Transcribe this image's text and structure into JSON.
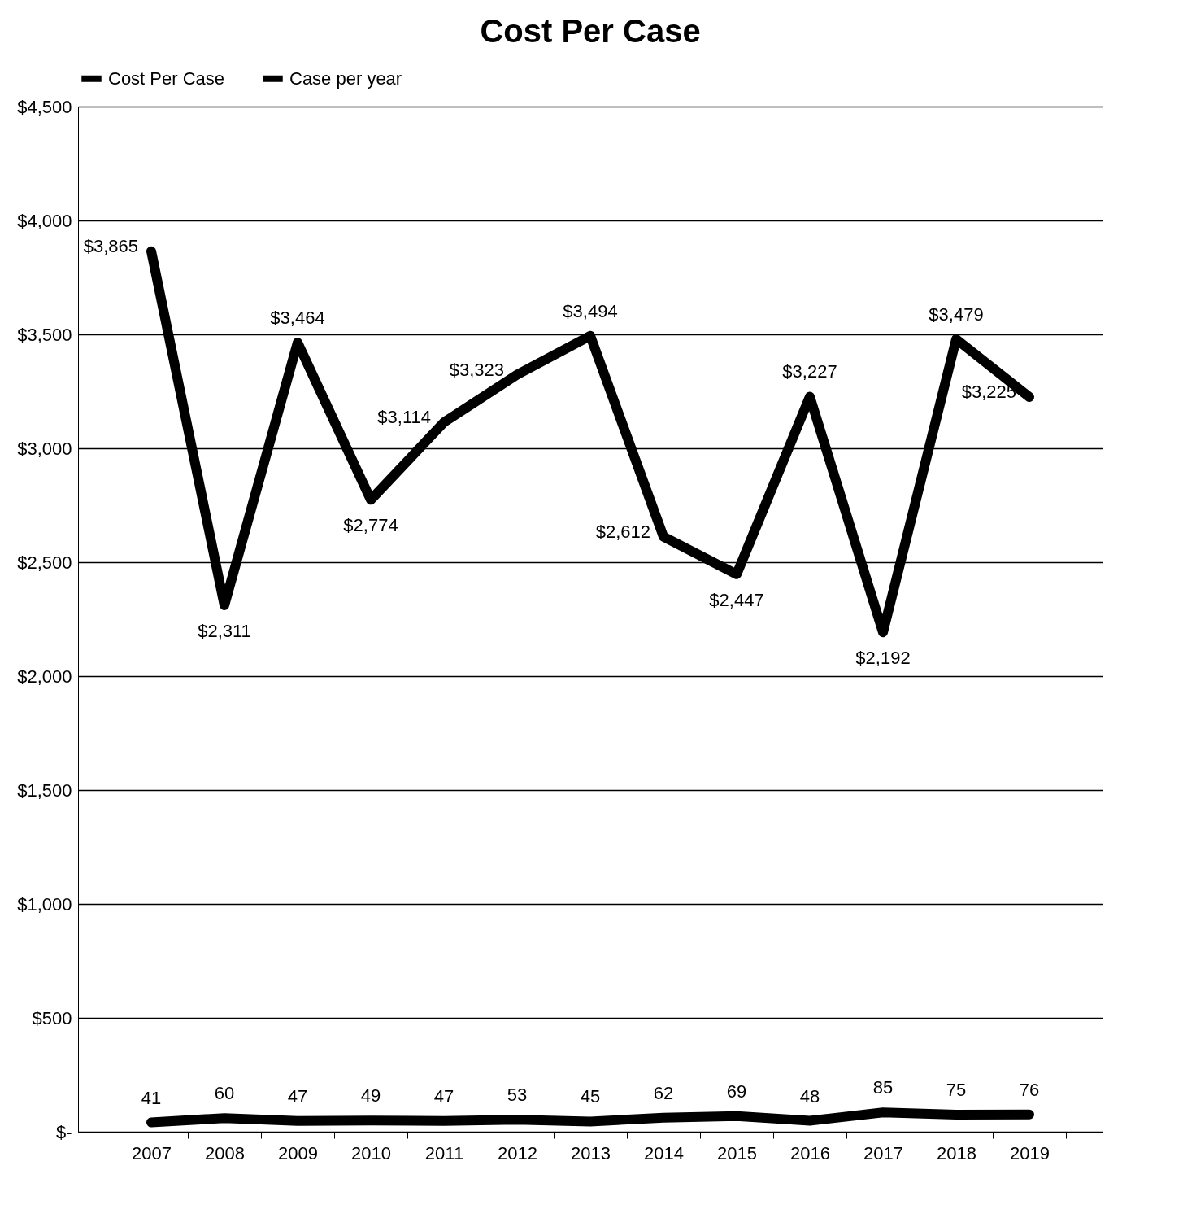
{
  "chart_data": {
    "type": "line",
    "title": "Cost Per Case",
    "categories": [
      "2007",
      "2008",
      "2009",
      "2010",
      "2011",
      "2012",
      "2013",
      "2014",
      "2015",
      "2016",
      "2017",
      "2018",
      "2019"
    ],
    "series": [
      {
        "name": "Cost Per Case",
        "color": "#000000",
        "values": [
          3865,
          2311,
          3464,
          2774,
          3114,
          3323,
          3494,
          2612,
          2447,
          3227,
          2192,
          3479,
          3225
        ],
        "value_labels": [
          "$3,865",
          "$2,311",
          "$3,464",
          "$2,774",
          "$3,114",
          "$3,323",
          "$3,494",
          "$2,612",
          "$2,447",
          "$3,227",
          "$2,192",
          "$3,479",
          "$3,225"
        ]
      },
      {
        "name": "Case per year",
        "color": "#000000",
        "values": [
          41,
          60,
          47,
          49,
          47,
          53,
          45,
          62,
          69,
          48,
          85,
          75,
          76
        ],
        "value_labels": [
          "41",
          "60",
          "47",
          "49",
          "47",
          "53",
          "45",
          "62",
          "69",
          "48",
          "85",
          "75",
          "76"
        ]
      }
    ],
    "ylim": [
      0,
      4500
    ],
    "yticks": [
      {
        "value": 0,
        "label": "$-"
      },
      {
        "value": 500,
        "label": "$500"
      },
      {
        "value": 1000,
        "label": "$1,000"
      },
      {
        "value": 1500,
        "label": "$1,500"
      },
      {
        "value": 2000,
        "label": "$2,000"
      },
      {
        "value": 2500,
        "label": "$2,500"
      },
      {
        "value": 3000,
        "label": "$3,000"
      },
      {
        "value": 3500,
        "label": "$3,500"
      },
      {
        "value": 4000,
        "label": "$4,000"
      },
      {
        "value": 4500,
        "label": "$4,500"
      }
    ],
    "grid": "y",
    "legend": "top",
    "line_style": "solid",
    "marker": "none"
  }
}
